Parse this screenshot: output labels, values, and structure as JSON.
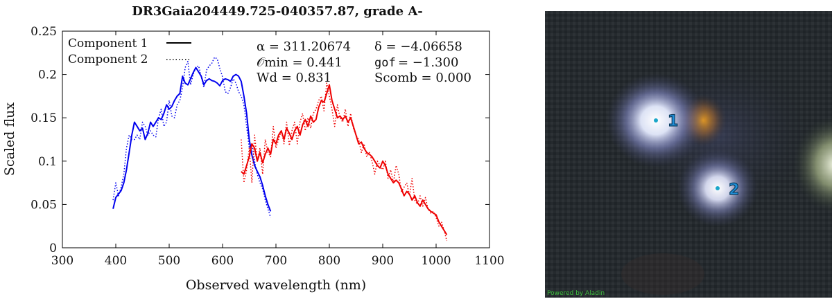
{
  "chart_data": {
    "type": "line",
    "title": "DR3Gaia204449.725-040357.87, grade A-",
    "xlabel": "Observed wavelength (nm)",
    "ylabel": "Scaled flux",
    "xlim": [
      300,
      1100
    ],
    "ylim": [
      0,
      0.25
    ],
    "x_ticks": [
      300,
      400,
      500,
      600,
      700,
      800,
      900,
      1000,
      1100
    ],
    "y_ticks": [
      0,
      0.05,
      0.1,
      0.15,
      0.2,
      0.25
    ],
    "x_tick_labels": [
      "300",
      "400",
      "500",
      "600",
      "700",
      "800",
      "900",
      "1000",
      "1100"
    ],
    "y_tick_labels": [
      "0",
      "0.05",
      "0.1",
      "0.15",
      "0.2",
      "0.25"
    ],
    "legend": {
      "position": "top-left",
      "entries": [
        {
          "label": "Component 1",
          "style": "solid"
        },
        {
          "label": "Component 2",
          "style": "dotted"
        }
      ]
    },
    "annotations": {
      "alpha": "α = 311.20674",
      "delta": "δ = −4.06658",
      "omin": "𝒪min = 0.441",
      "gof_prefix": "gof",
      "gof_value": "= −1.300",
      "wd": "Wd = 0.831",
      "scomb": "Scomb = 0.000"
    },
    "series": [
      {
        "name": "Component 1",
        "group": "BP",
        "style": "solid",
        "color": "#0000ee",
        "x": [
          395,
          400,
          405,
          410,
          415,
          420,
          425,
          430,
          435,
          440,
          445,
          450,
          455,
          460,
          465,
          470,
          475,
          480,
          485,
          490,
          495,
          500,
          505,
          510,
          515,
          520,
          525,
          530,
          535,
          540,
          545,
          550,
          555,
          560,
          565,
          570,
          575,
          580,
          585,
          590,
          595,
          600,
          605,
          610,
          615,
          620,
          625,
          630,
          635,
          640,
          645,
          650,
          655,
          660,
          665,
          670,
          675,
          680,
          685,
          690
        ],
        "y": [
          0.045,
          0.058,
          0.062,
          0.066,
          0.075,
          0.09,
          0.11,
          0.13,
          0.145,
          0.14,
          0.135,
          0.138,
          0.125,
          0.132,
          0.145,
          0.14,
          0.145,
          0.15,
          0.148,
          0.155,
          0.165,
          0.16,
          0.163,
          0.17,
          0.175,
          0.178,
          0.198,
          0.19,
          0.188,
          0.195,
          0.202,
          0.208,
          0.203,
          0.198,
          0.188,
          0.193,
          0.195,
          0.193,
          0.192,
          0.19,
          0.187,
          0.193,
          0.195,
          0.194,
          0.192,
          0.198,
          0.2,
          0.198,
          0.192,
          0.175,
          0.155,
          0.125,
          0.107,
          0.095,
          0.088,
          0.082,
          0.072,
          0.06,
          0.05,
          0.042
        ]
      },
      {
        "name": "Component 2",
        "group": "BP",
        "style": "dotted",
        "color": "#0000ee",
        "x": [
          395,
          400,
          405,
          410,
          415,
          420,
          425,
          430,
          435,
          440,
          445,
          450,
          455,
          460,
          465,
          470,
          475,
          480,
          485,
          490,
          495,
          500,
          505,
          510,
          515,
          520,
          525,
          530,
          535,
          540,
          545,
          550,
          555,
          560,
          565,
          570,
          575,
          580,
          585,
          590,
          595,
          600,
          605,
          610,
          615,
          620,
          625,
          630,
          635,
          640,
          645,
          650,
          655,
          660,
          665,
          670,
          675,
          680,
          685,
          690
        ],
        "y": [
          0.055,
          0.075,
          0.06,
          0.07,
          0.085,
          0.115,
          0.13,
          0.125,
          0.125,
          0.13,
          0.125,
          0.145,
          0.14,
          0.13,
          0.135,
          0.13,
          0.128,
          0.15,
          0.16,
          0.14,
          0.145,
          0.17,
          0.152,
          0.15,
          0.165,
          0.17,
          0.185,
          0.208,
          0.215,
          0.188,
          0.2,
          0.208,
          0.21,
          0.198,
          0.185,
          0.205,
          0.21,
          0.213,
          0.22,
          0.218,
          0.207,
          0.197,
          0.18,
          0.178,
          0.185,
          0.195,
          0.19,
          0.18,
          0.175,
          0.165,
          0.14,
          0.115,
          0.12,
          0.1,
          0.085,
          0.075,
          0.068,
          0.055,
          0.045,
          0.035
        ]
      },
      {
        "name": "Component 1",
        "group": "RP",
        "style": "solid",
        "color": "#ee0000",
        "x": [
          635,
          640,
          645,
          650,
          655,
          660,
          665,
          670,
          675,
          680,
          685,
          690,
          695,
          700,
          705,
          710,
          715,
          720,
          725,
          730,
          735,
          740,
          745,
          750,
          755,
          760,
          765,
          770,
          775,
          780,
          785,
          790,
          795,
          800,
          805,
          810,
          815,
          820,
          825,
          830,
          835,
          840,
          845,
          850,
          855,
          860,
          865,
          870,
          875,
          880,
          885,
          890,
          895,
          900,
          905,
          910,
          915,
          920,
          925,
          930,
          935,
          940,
          945,
          950,
          955,
          960,
          965,
          970,
          975,
          980,
          985,
          990,
          995,
          1000,
          1005,
          1010,
          1015,
          1020
        ],
        "y": [
          0.088,
          0.085,
          0.095,
          0.105,
          0.12,
          0.115,
          0.1,
          0.11,
          0.098,
          0.108,
          0.115,
          0.108,
          0.125,
          0.12,
          0.13,
          0.135,
          0.125,
          0.138,
          0.132,
          0.125,
          0.135,
          0.14,
          0.13,
          0.142,
          0.148,
          0.14,
          0.152,
          0.145,
          0.148,
          0.162,
          0.17,
          0.168,
          0.178,
          0.188,
          0.17,
          0.16,
          0.15,
          0.152,
          0.148,
          0.152,
          0.145,
          0.15,
          0.14,
          0.13,
          0.12,
          0.122,
          0.115,
          0.11,
          0.108,
          0.105,
          0.1,
          0.095,
          0.092,
          0.1,
          0.095,
          0.085,
          0.08,
          0.075,
          0.078,
          0.075,
          0.068,
          0.06,
          0.065,
          0.062,
          0.055,
          0.06,
          0.052,
          0.048,
          0.055,
          0.05,
          0.045,
          0.042,
          0.04,
          0.038,
          0.03,
          0.025,
          0.02,
          0.015
        ]
      },
      {
        "name": "Component 2",
        "group": "RP",
        "style": "dotted",
        "color": "#ee0000",
        "x": [
          635,
          640,
          645,
          650,
          655,
          660,
          665,
          670,
          675,
          680,
          685,
          690,
          695,
          700,
          705,
          710,
          715,
          720,
          725,
          730,
          735,
          740,
          745,
          750,
          755,
          760,
          765,
          770,
          775,
          780,
          785,
          790,
          795,
          800,
          805,
          810,
          815,
          820,
          825,
          830,
          835,
          840,
          845,
          850,
          855,
          860,
          865,
          870,
          875,
          880,
          885,
          890,
          895,
          900,
          905,
          910,
          915,
          920,
          925,
          930,
          935,
          940,
          945,
          950,
          955,
          960,
          965,
          970,
          975,
          980,
          985,
          990,
          995,
          1000,
          1005,
          1010,
          1015,
          1020
        ],
        "y": [
          0.125,
          0.075,
          0.09,
          0.115,
          0.075,
          0.13,
          0.1,
          0.115,
          0.085,
          0.125,
          0.11,
          0.105,
          0.14,
          0.115,
          0.125,
          0.135,
          0.12,
          0.145,
          0.118,
          0.135,
          0.145,
          0.12,
          0.145,
          0.155,
          0.135,
          0.15,
          0.138,
          0.155,
          0.16,
          0.17,
          0.175,
          0.158,
          0.19,
          0.175,
          0.16,
          0.14,
          0.165,
          0.15,
          0.145,
          0.16,
          0.14,
          0.155,
          0.138,
          0.13,
          0.125,
          0.11,
          0.12,
          0.105,
          0.11,
          0.1,
          0.085,
          0.1,
          0.095,
          0.09,
          0.1,
          0.08,
          0.09,
          0.075,
          0.095,
          0.085,
          0.065,
          0.07,
          0.075,
          0.06,
          0.08,
          0.055,
          0.05,
          0.06,
          0.048,
          0.058,
          0.045,
          0.04,
          0.042,
          0.035,
          0.025,
          0.03,
          0.02,
          0.008
        ]
      }
    ]
  },
  "image_panel": {
    "markers": [
      {
        "label": "1"
      },
      {
        "label": "2"
      }
    ],
    "credit": "Powered by Aladin"
  }
}
